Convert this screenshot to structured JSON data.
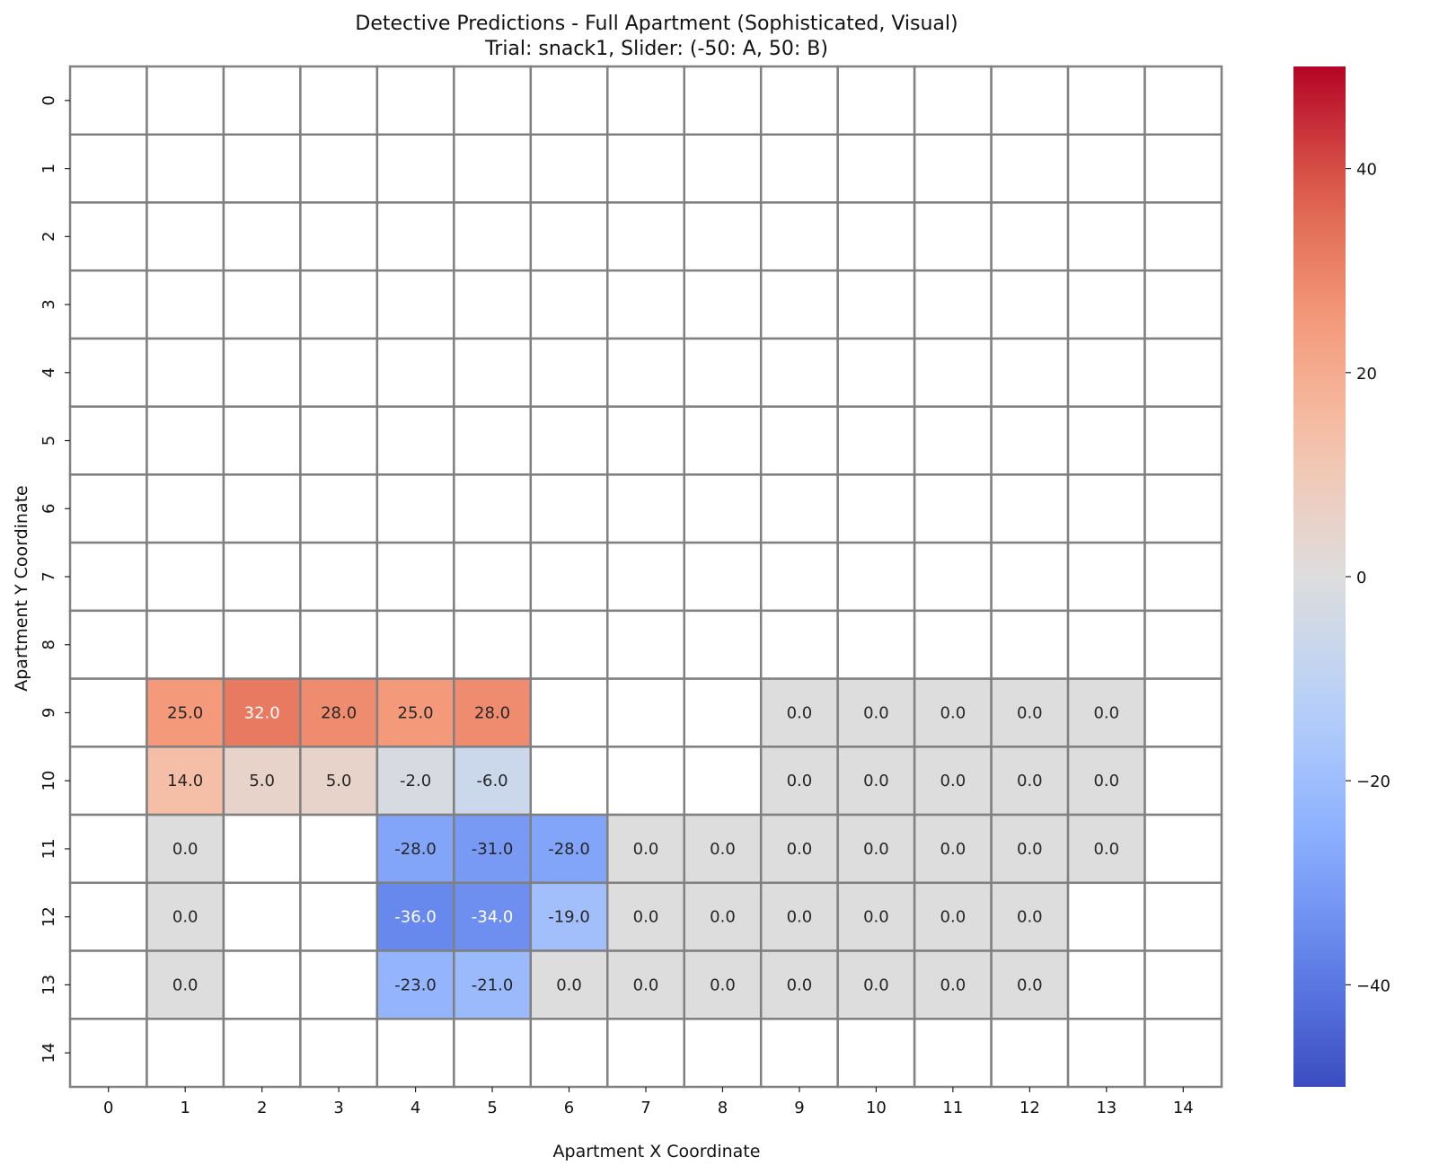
{
  "chart_data": {
    "type": "heatmap",
    "title": "Detective Predictions - Full Apartment (Sophisticated, Visual)",
    "subtitle": "Trial: snack1, Slider: (-50: A, 50: B)",
    "xlabel": "Apartment X Coordinate",
    "ylabel": "Apartment Y Coordinate",
    "x_ticks": [
      "0",
      "1",
      "2",
      "3",
      "4",
      "5",
      "6",
      "7",
      "8",
      "9",
      "10",
      "11",
      "12",
      "13",
      "14"
    ],
    "y_ticks": [
      "0",
      "1",
      "2",
      "3",
      "4",
      "5",
      "6",
      "7",
      "8",
      "9",
      "10",
      "11",
      "12",
      "13",
      "14"
    ],
    "colormap": "coolwarm",
    "vmin": -50,
    "vmax": 50,
    "colorbar_ticks": [
      "40",
      "20",
      "0",
      "−20",
      "−40"
    ],
    "colorbar_tick_values": [
      40,
      20,
      0,
      -20,
      -40
    ],
    "grid_color": "#808080",
    "values": [
      [
        null,
        null,
        null,
        null,
        null,
        null,
        null,
        null,
        null,
        null,
        null,
        null,
        null,
        null,
        null
      ],
      [
        null,
        null,
        null,
        null,
        null,
        null,
        null,
        null,
        null,
        null,
        null,
        null,
        null,
        null,
        null
      ],
      [
        null,
        null,
        null,
        null,
        null,
        null,
        null,
        null,
        null,
        null,
        null,
        null,
        null,
        null,
        null
      ],
      [
        null,
        null,
        null,
        null,
        null,
        null,
        null,
        null,
        null,
        null,
        null,
        null,
        null,
        null,
        null
      ],
      [
        null,
        null,
        null,
        null,
        null,
        null,
        null,
        null,
        null,
        null,
        null,
        null,
        null,
        null,
        null
      ],
      [
        null,
        null,
        null,
        null,
        null,
        null,
        null,
        null,
        null,
        null,
        null,
        null,
        null,
        null,
        null
      ],
      [
        null,
        null,
        null,
        null,
        null,
        null,
        null,
        null,
        null,
        null,
        null,
        null,
        null,
        null,
        null
      ],
      [
        null,
        null,
        null,
        null,
        null,
        null,
        null,
        null,
        null,
        null,
        null,
        null,
        null,
        null,
        null
      ],
      [
        null,
        null,
        null,
        null,
        null,
        null,
        null,
        null,
        null,
        null,
        null,
        null,
        null,
        null,
        null
      ],
      [
        null,
        25.0,
        32.0,
        28.0,
        25.0,
        28.0,
        null,
        null,
        null,
        0.0,
        0.0,
        0.0,
        0.0,
        0.0,
        null
      ],
      [
        null,
        14.0,
        5.0,
        5.0,
        -2.0,
        -6.0,
        null,
        null,
        null,
        0.0,
        0.0,
        0.0,
        0.0,
        0.0,
        null
      ],
      [
        null,
        0.0,
        null,
        null,
        -28.0,
        -31.0,
        -28.0,
        0.0,
        0.0,
        0.0,
        0.0,
        0.0,
        0.0,
        0.0,
        null
      ],
      [
        null,
        0.0,
        null,
        null,
        -36.0,
        -34.0,
        -19.0,
        0.0,
        0.0,
        0.0,
        0.0,
        0.0,
        0.0,
        null,
        null
      ],
      [
        null,
        0.0,
        null,
        null,
        -23.0,
        -21.0,
        0.0,
        0.0,
        0.0,
        0.0,
        0.0,
        0.0,
        0.0,
        null,
        null
      ],
      [
        null,
        null,
        null,
        null,
        null,
        null,
        null,
        null,
        null,
        null,
        null,
        null,
        null,
        null,
        null
      ]
    ]
  }
}
